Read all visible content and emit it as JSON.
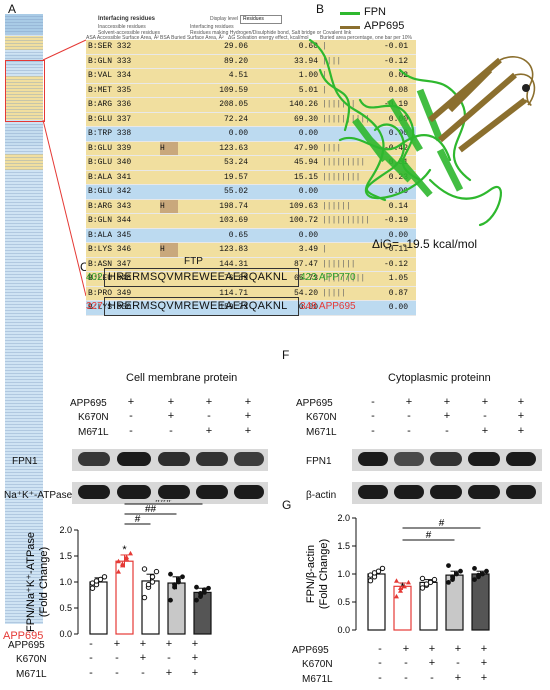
{
  "panel_labels": {
    "A": "A",
    "B": "B",
    "C": "C",
    "D": "D",
    "E": "E",
    "F": "F",
    "G": "G"
  },
  "panelA": {
    "header_title": "Interfacing residues",
    "header_options": [
      "Display level",
      "Residues"
    ],
    "legend_items": [
      "Inaccessible residues",
      "Solvent-accessible residues",
      "Interfacing residues",
      "Residues making Hydrogen/Disulphide bond, Salt bridge or Covalent link",
      "Solvation energy effect",
      "Buried area percentage, one bar per 10%"
    ],
    "legend_abbr": [
      "ASA  Accessible Surface Area, Å²",
      "BSA  Buried Surface Area, Å²",
      "ΔG  Solvation energy effect, kcal/mol"
    ],
    "rows": [
      {
        "res": "B:SER 332",
        "hint": "",
        "asa": "29.06",
        "bsa": "0.60",
        "bar": "|",
        "dg": "-0.01",
        "bg": "#f1df9f"
      },
      {
        "res": "B:GLN 333",
        "hint": "",
        "asa": "89.20",
        "bsa": "33.94",
        "bar": "||||",
        "dg": "-0.12",
        "bg": "#f1df9f"
      },
      {
        "res": "B:VAL 334",
        "hint": "",
        "asa": "4.51",
        "bsa": "1.00",
        "bar": "|",
        "dg": "0.02",
        "bg": "#f1df9f"
      },
      {
        "res": "B:MET 335",
        "hint": "",
        "asa": "109.59",
        "bsa": "5.01",
        "bar": "|",
        "dg": "0.08",
        "bg": "#f1df9f"
      },
      {
        "res": "B:ARG 336",
        "hint": "",
        "asa": "208.05",
        "bsa": "140.26",
        "bar": "|||||||",
        "dg": "-0.19",
        "bg": "#f1df9f"
      },
      {
        "res": "B:GLU 337",
        "hint": "",
        "asa": "72.24",
        "bsa": "69.30",
        "bar": "||||||||||",
        "dg": "0.00",
        "bg": "#f1df9f"
      },
      {
        "res": "B:TRP 338",
        "hint": "",
        "asa": "0.00",
        "bsa": "0.00",
        "bar": "",
        "dg": "0.00",
        "bg": "#bcdaf0"
      },
      {
        "res": "B:GLU 339",
        "hint": "H",
        "asa": "123.63",
        "bsa": "47.90",
        "bar": "||||",
        "dg": "-0.42",
        "bg": "#f1df9f"
      },
      {
        "res": "B:GLU 340",
        "hint": "",
        "asa": "53.24",
        "bsa": "45.94",
        "bar": "|||||||||",
        "dg": "0.51",
        "bg": "#f1df9f"
      },
      {
        "res": "B:ALA 341",
        "hint": "",
        "asa": "19.57",
        "bsa": "15.15",
        "bar": "||||||||",
        "dg": "0.23",
        "bg": "#f1df9f"
      },
      {
        "res": "B:GLU 342",
        "hint": "",
        "asa": "55.02",
        "bsa": "0.00",
        "bar": "",
        "dg": "0.00",
        "bg": "#bcdaf0"
      },
      {
        "res": "B:ARG 343",
        "hint": "H",
        "asa": "198.74",
        "bsa": "109.63",
        "bar": "||||||",
        "dg": "0.14",
        "bg": "#f1df9f"
      },
      {
        "res": "B:GLN 344",
        "hint": "",
        "asa": "103.69",
        "bsa": "100.72",
        "bar": "||||||||||",
        "dg": "-0.19",
        "bg": "#f1df9f"
      },
      {
        "res": "B:ALA 345",
        "hint": "",
        "asa": "0.65",
        "bsa": "0.00",
        "bar": "",
        "dg": "0.00",
        "bg": "#bcdaf0"
      },
      {
        "res": "B:LYS 346",
        "hint": "H",
        "asa": "123.83",
        "bsa": "3.49",
        "bar": "|",
        "dg": "-0.11",
        "bg": "#f1df9f"
      },
      {
        "res": "B:ASN 347",
        "hint": "",
        "asa": "144.31",
        "bsa": "87.47",
        "bar": "|||||||",
        "dg": "-0.12",
        "bg": "#f1df9f"
      },
      {
        "res": "B:LEU 348",
        "hint": "",
        "asa": "76.89",
        "bsa": "65.73",
        "bar": "|||||||||",
        "dg": "1.05",
        "bg": "#f1df9f"
      },
      {
        "res": "B:PRO 349",
        "hint": "",
        "asa": "114.71",
        "bsa": "54.20",
        "bar": "|||||",
        "dg": "0.87",
        "bg": "#f1df9f"
      },
      {
        "res": "B:LYS 350",
        "hint": "",
        "asa": "159.73",
        "bsa": "0.00",
        "bar": "",
        "dg": "0.00",
        "bg": "#bcdaf0"
      }
    ],
    "strip_label": "APP695"
  },
  "panelB": {
    "legend": [
      {
        "name": "FPN",
        "color": "#2eb82e"
      },
      {
        "name": "APP695",
        "color": "#8b6f2e"
      }
    ],
    "energy": "ΔiG= -19.5 kcal/mol"
  },
  "panelC": {
    "title": "FTP",
    "seq1_start": "402",
    "seq1": "HRERMSQVMREWEEAERQAKNL",
    "seq1_end": "423 APP770",
    "seq2_start": "327",
    "seq2": "HRERMSQVMREWEEAERQAKNL",
    "seq2_end": "348 APP695"
  },
  "panelD": {
    "title": "Cell membrane protein",
    "row_labels": [
      "APP695",
      "K670N",
      "M671L"
    ],
    "signs": [
      [
        "-",
        "+",
        "+",
        "+",
        "+"
      ],
      [
        "-",
        "-",
        "+",
        "-",
        "+"
      ],
      [
        "-",
        "-",
        "-",
        "+",
        "+"
      ]
    ],
    "blots": [
      "FPN1",
      "Na⁺K⁺-ATPase"
    ]
  },
  "panelF": {
    "title": "Cytoplasmic proteinn",
    "row_labels": [
      "APP695",
      "K670N",
      "M671L"
    ],
    "signs": [
      [
        "-",
        "+",
        "+",
        "+",
        "+"
      ],
      [
        "-",
        "-",
        "+",
        "-",
        "+"
      ],
      [
        "-",
        "-",
        "-",
        "+",
        "+"
      ]
    ],
    "blots": [
      "FPN1",
      "β-actin"
    ]
  },
  "panelE": {
    "significance": [
      "*",
      "#",
      "##",
      "###"
    ],
    "row_labels": [
      "APP695",
      "K670N",
      "M671L"
    ],
    "signs": [
      [
        "-",
        "+",
        "+",
        "+",
        "+"
      ],
      [
        "-",
        "-",
        "+",
        "-",
        "+"
      ],
      [
        "-",
        "-",
        "-",
        "+",
        "+"
      ]
    ]
  },
  "panelG": {
    "significance": [
      "*",
      "#",
      "#"
    ],
    "row_labels": [
      "APP695",
      "K670N",
      "M671L"
    ],
    "signs": [
      [
        "-",
        "+",
        "+",
        "+",
        "+"
      ],
      [
        "-",
        "-",
        "+",
        "-",
        "+"
      ],
      [
        "-",
        "-",
        "-",
        "+",
        "+"
      ]
    ]
  },
  "chart_data": [
    {
      "type": "bar",
      "categories": [
        "Control",
        "APP695",
        "APP695+K670N",
        "APP695+M671L",
        "APP695+K670N+M671L"
      ],
      "values": [
        1.0,
        1.4,
        1.02,
        0.98,
        0.8
      ],
      "errors": [
        0.08,
        0.12,
        0.13,
        0.12,
        0.08
      ],
      "points": [
        [
          0.88,
          0.95,
          1.05,
          1.1,
          0.98,
          1.02
        ],
        [
          1.2,
          1.35,
          1.45,
          1.55,
          1.4,
          1.32,
          1.48
        ],
        [
          0.7,
          0.9,
          1.1,
          1.2,
          1.25,
          0.95,
          1.0
        ],
        [
          0.65,
          0.9,
          1.0,
          1.1,
          1.15,
          0.95,
          1.05
        ],
        [
          0.65,
          0.72,
          0.8,
          0.88,
          0.9,
          0.78,
          0.85
        ]
      ],
      "colors": [
        "#ffffff",
        "#ffffff",
        "#ffffff",
        "#c8c8c8",
        "#555555"
      ],
      "edge_colors": [
        "#111111",
        "#e53935",
        "#111111",
        "#111111",
        "#111111"
      ],
      "xlabel": "",
      "ylabel": "FPN/Na⁺K⁺-ATPase\n(Fold Change)",
      "ylim": [
        0.0,
        2.0
      ],
      "yticks": [
        "0.0",
        "0.5",
        "1.0",
        "1.5",
        "2.0"
      ],
      "annotations": [
        "*",
        "#",
        "##",
        "###"
      ]
    },
    {
      "type": "bar",
      "categories": [
        "Control",
        "APP695",
        "APP695+K670N",
        "APP695+M671L",
        "APP695+K670N+M671L"
      ],
      "values": [
        1.0,
        0.78,
        0.85,
        0.98,
        1.0
      ],
      "errors": [
        0.05,
        0.06,
        0.05,
        0.07,
        0.05
      ],
      "points": [
        [
          0.88,
          0.95,
          1.05,
          1.1,
          0.98,
          1.02
        ],
        [
          0.6,
          0.7,
          0.78,
          0.85,
          0.88,
          0.75
        ],
        [
          0.75,
          0.8,
          0.85,
          0.9,
          0.92,
          0.82
        ],
        [
          0.85,
          0.9,
          1.0,
          1.05,
          1.15,
          0.95
        ],
        [
          0.9,
          0.95,
          1.0,
          1.05,
          1.1,
          0.98
        ]
      ],
      "colors": [
        "#ffffff",
        "#ffffff",
        "#ffffff",
        "#c8c8c8",
        "#555555"
      ],
      "edge_colors": [
        "#111111",
        "#e53935",
        "#111111",
        "#111111",
        "#111111"
      ],
      "xlabel": "",
      "ylabel": "FPN/β-actin\n(Fold Change)",
      "ylim": [
        0.0,
        2.0
      ],
      "yticks": [
        "0.0",
        "0.5",
        "1.0",
        "1.5",
        "2.0"
      ],
      "annotations": [
        "*",
        "#",
        "#"
      ]
    }
  ]
}
